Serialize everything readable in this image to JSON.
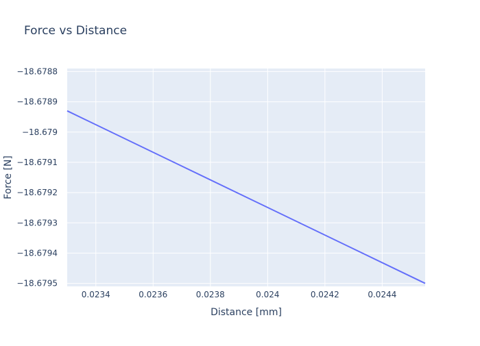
{
  "chart_data": {
    "type": "line",
    "title": "Force vs Distance",
    "xlabel": "Distance [mm]",
    "ylabel": "Force [N]",
    "xlim": [
      0.0233,
      0.02455
    ],
    "ylim": [
      -18.67951,
      -18.67879
    ],
    "x_ticks": [
      0.0234,
      0.0236,
      0.0238,
      0.024,
      0.0242,
      0.0244
    ],
    "x_tick_labels": [
      "0.0234",
      "0.0236",
      "0.0238",
      "0.024",
      "0.0242",
      "0.0244"
    ],
    "y_ticks": [
      -18.6788,
      -18.6789,
      -18.679,
      -18.6791,
      -18.6792,
      -18.6793,
      -18.6794,
      -18.6795
    ],
    "y_tick_labels": [
      "−18.6788",
      "−18.6789",
      "−18.679",
      "−18.6791",
      "−18.6792",
      "−18.6793",
      "−18.6794",
      "−18.6795"
    ],
    "grid": true,
    "series": [
      {
        "color": "#636efa",
        "x": [
          0.0233,
          0.02455
        ],
        "y": [
          -18.67893,
          -18.6795
        ]
      }
    ],
    "colors": {
      "plot_bg": "#e5ecf6",
      "grid": "#ffffff",
      "text": "#2a3f5f"
    }
  }
}
